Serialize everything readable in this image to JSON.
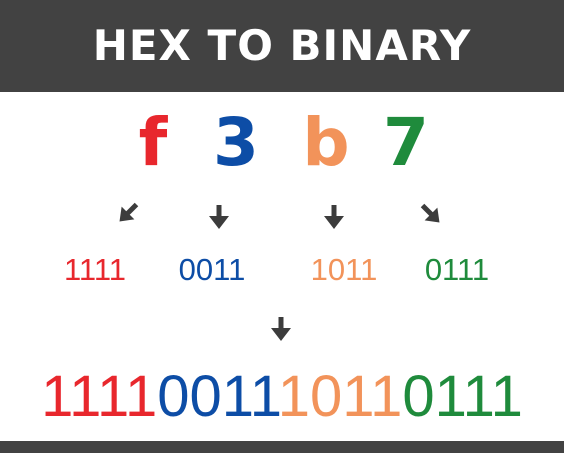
{
  "title": "HEX TO BINARY",
  "colors": {
    "banner": "#424242",
    "f": "#e8272d",
    "3": "#0d4da6",
    "b": "#f2935a",
    "7": "#1f8b3c",
    "arrow": "#3c3c3c"
  },
  "hex_digits": [
    {
      "digit": "f",
      "color": "#e8272d"
    },
    {
      "digit": "3",
      "color": "#0d4da6"
    },
    {
      "digit": "b",
      "color": "#f2935a"
    },
    {
      "digit": "7",
      "color": "#1f8b3c"
    }
  ],
  "nibbles": [
    {
      "bits": "1111",
      "color": "#e8272d"
    },
    {
      "bits": "0011",
      "color": "#0d4da6"
    },
    {
      "bits": "1011",
      "color": "#f2935a"
    },
    {
      "bits": "0111",
      "color": "#1f8b3c"
    }
  ],
  "result_groups": [
    {
      "bits": "1111",
      "color": "#e8272d"
    },
    {
      "bits": "0011",
      "color": "#0d4da6"
    },
    {
      "bits": "1011",
      "color": "#f2935a"
    },
    {
      "bits": "0111",
      "color": "#1f8b3c"
    }
  ]
}
